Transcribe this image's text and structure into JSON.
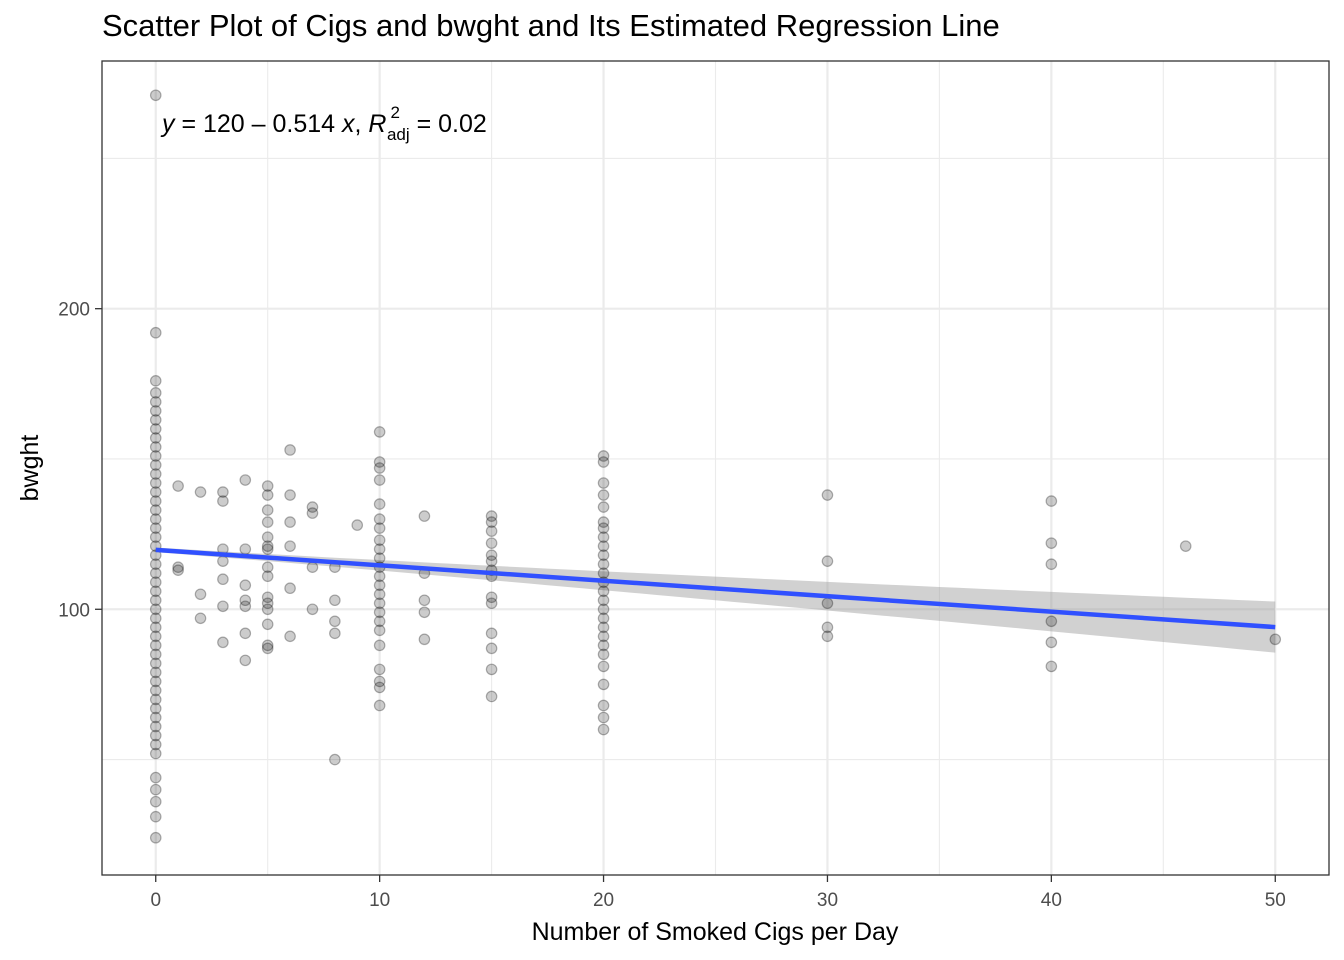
{
  "chart_data": {
    "type": "scatter",
    "title": "Scatter Plot of Cigs and bwght and Its Estimated Regression Line",
    "xlabel": "Number of Smoked Cigs per Day",
    "ylabel": "bwght",
    "xlim": [
      -2.4,
      52.4
    ],
    "ylim": [
      11.6,
      282.4
    ],
    "x_ticks": [
      0,
      10,
      20,
      30,
      40,
      50
    ],
    "y_ticks": [
      100,
      200
    ],
    "grid": true,
    "legend": "none",
    "annotation": {
      "y_var": "y",
      "equals": " = ",
      "formula": "120 – 0.514 ",
      "x_var": "x",
      "r_symbol": "R",
      "r_sup": "2",
      "r_sub": "adj",
      "r_value": " = 0.02"
    },
    "regression": {
      "intercept": 119.77,
      "slope": -0.514,
      "x_range": [
        0,
        50
      ],
      "ci_halfwidth_start": 0.8,
      "ci_halfwidth_end": 8.5
    },
    "colors": {
      "points": "#000000",
      "regression_line": "#3050ff",
      "confidence_band": "#999999",
      "grid": "#ebebeb",
      "panel_border": "#333333"
    },
    "points": [
      {
        "x": 0,
        "y": 271
      },
      {
        "x": 0,
        "y": 192
      },
      {
        "x": 0,
        "y": 176
      },
      {
        "x": 0,
        "y": 172
      },
      {
        "x": 0,
        "y": 169
      },
      {
        "x": 0,
        "y": 166
      },
      {
        "x": 0,
        "y": 163
      },
      {
        "x": 0,
        "y": 160
      },
      {
        "x": 0,
        "y": 157
      },
      {
        "x": 0,
        "y": 154
      },
      {
        "x": 0,
        "y": 151
      },
      {
        "x": 0,
        "y": 148
      },
      {
        "x": 0,
        "y": 145
      },
      {
        "x": 0,
        "y": 142
      },
      {
        "x": 0,
        "y": 139
      },
      {
        "x": 0,
        "y": 136
      },
      {
        "x": 0,
        "y": 133
      },
      {
        "x": 0,
        "y": 130
      },
      {
        "x": 0,
        "y": 127
      },
      {
        "x": 0,
        "y": 124
      },
      {
        "x": 0,
        "y": 121
      },
      {
        "x": 0,
        "y": 118
      },
      {
        "x": 0,
        "y": 115
      },
      {
        "x": 0,
        "y": 112
      },
      {
        "x": 0,
        "y": 109
      },
      {
        "x": 0,
        "y": 106
      },
      {
        "x": 0,
        "y": 103
      },
      {
        "x": 0,
        "y": 100
      },
      {
        "x": 0,
        "y": 97
      },
      {
        "x": 0,
        "y": 94
      },
      {
        "x": 0,
        "y": 91
      },
      {
        "x": 0,
        "y": 88
      },
      {
        "x": 0,
        "y": 85
      },
      {
        "x": 0,
        "y": 82
      },
      {
        "x": 0,
        "y": 79
      },
      {
        "x": 0,
        "y": 76
      },
      {
        "x": 0,
        "y": 73
      },
      {
        "x": 0,
        "y": 70
      },
      {
        "x": 0,
        "y": 67
      },
      {
        "x": 0,
        "y": 64
      },
      {
        "x": 0,
        "y": 61
      },
      {
        "x": 0,
        "y": 58
      },
      {
        "x": 0,
        "y": 55
      },
      {
        "x": 0,
        "y": 52
      },
      {
        "x": 0,
        "y": 44
      },
      {
        "x": 0,
        "y": 40
      },
      {
        "x": 0,
        "y": 36
      },
      {
        "x": 0,
        "y": 31
      },
      {
        "x": 0,
        "y": 24
      },
      {
        "x": 1,
        "y": 141
      },
      {
        "x": 1,
        "y": 114
      },
      {
        "x": 1,
        "y": 113
      },
      {
        "x": 2,
        "y": 139
      },
      {
        "x": 2,
        "y": 105
      },
      {
        "x": 2,
        "y": 97
      },
      {
        "x": 3,
        "y": 139
      },
      {
        "x": 3,
        "y": 136
      },
      {
        "x": 3,
        "y": 120
      },
      {
        "x": 3,
        "y": 116
      },
      {
        "x": 3,
        "y": 110
      },
      {
        "x": 3,
        "y": 101
      },
      {
        "x": 3,
        "y": 89
      },
      {
        "x": 4,
        "y": 143
      },
      {
        "x": 4,
        "y": 120
      },
      {
        "x": 4,
        "y": 108
      },
      {
        "x": 4,
        "y": 103
      },
      {
        "x": 4,
        "y": 101
      },
      {
        "x": 4,
        "y": 92
      },
      {
        "x": 4,
        "y": 83
      },
      {
        "x": 5,
        "y": 141
      },
      {
        "x": 5,
        "y": 138
      },
      {
        "x": 5,
        "y": 133
      },
      {
        "x": 5,
        "y": 129
      },
      {
        "x": 5,
        "y": 124
      },
      {
        "x": 5,
        "y": 121
      },
      {
        "x": 5,
        "y": 120
      },
      {
        "x": 5,
        "y": 114
      },
      {
        "x": 5,
        "y": 111
      },
      {
        "x": 5,
        "y": 104
      },
      {
        "x": 5,
        "y": 102
      },
      {
        "x": 5,
        "y": 100
      },
      {
        "x": 5,
        "y": 95
      },
      {
        "x": 5,
        "y": 88
      },
      {
        "x": 5,
        "y": 87
      },
      {
        "x": 6,
        "y": 153
      },
      {
        "x": 6,
        "y": 138
      },
      {
        "x": 6,
        "y": 129
      },
      {
        "x": 6,
        "y": 121
      },
      {
        "x": 6,
        "y": 107
      },
      {
        "x": 6,
        "y": 91
      },
      {
        "x": 7,
        "y": 134
      },
      {
        "x": 7,
        "y": 132
      },
      {
        "x": 7,
        "y": 114
      },
      {
        "x": 7,
        "y": 100
      },
      {
        "x": 8,
        "y": 114
      },
      {
        "x": 8,
        "y": 103
      },
      {
        "x": 8,
        "y": 96
      },
      {
        "x": 8,
        "y": 92
      },
      {
        "x": 8,
        "y": 50
      },
      {
        "x": 9,
        "y": 128
      },
      {
        "x": 10,
        "y": 159
      },
      {
        "x": 10,
        "y": 149
      },
      {
        "x": 10,
        "y": 147
      },
      {
        "x": 10,
        "y": 143
      },
      {
        "x": 10,
        "y": 135
      },
      {
        "x": 10,
        "y": 130
      },
      {
        "x": 10,
        "y": 127
      },
      {
        "x": 10,
        "y": 123
      },
      {
        "x": 10,
        "y": 120
      },
      {
        "x": 10,
        "y": 117
      },
      {
        "x": 10,
        "y": 114
      },
      {
        "x": 10,
        "y": 111
      },
      {
        "x": 10,
        "y": 108
      },
      {
        "x": 10,
        "y": 105
      },
      {
        "x": 10,
        "y": 102
      },
      {
        "x": 10,
        "y": 99
      },
      {
        "x": 10,
        "y": 96
      },
      {
        "x": 10,
        "y": 93
      },
      {
        "x": 10,
        "y": 88
      },
      {
        "x": 10,
        "y": 80
      },
      {
        "x": 10,
        "y": 76
      },
      {
        "x": 10,
        "y": 74
      },
      {
        "x": 10,
        "y": 68
      },
      {
        "x": 12,
        "y": 131
      },
      {
        "x": 12,
        "y": 112
      },
      {
        "x": 12,
        "y": 103
      },
      {
        "x": 12,
        "y": 99
      },
      {
        "x": 12,
        "y": 90
      },
      {
        "x": 15,
        "y": 131
      },
      {
        "x": 15,
        "y": 129
      },
      {
        "x": 15,
        "y": 126
      },
      {
        "x": 15,
        "y": 122
      },
      {
        "x": 15,
        "y": 118
      },
      {
        "x": 15,
        "y": 116
      },
      {
        "x": 15,
        "y": 113
      },
      {
        "x": 15,
        "y": 111
      },
      {
        "x": 15,
        "y": 104
      },
      {
        "x": 15,
        "y": 102
      },
      {
        "x": 15,
        "y": 92
      },
      {
        "x": 15,
        "y": 87
      },
      {
        "x": 15,
        "y": 80
      },
      {
        "x": 15,
        "y": 71
      },
      {
        "x": 20,
        "y": 151
      },
      {
        "x": 20,
        "y": 149
      },
      {
        "x": 20,
        "y": 142
      },
      {
        "x": 20,
        "y": 138
      },
      {
        "x": 20,
        "y": 134
      },
      {
        "x": 20,
        "y": 129
      },
      {
        "x": 20,
        "y": 127
      },
      {
        "x": 20,
        "y": 124
      },
      {
        "x": 20,
        "y": 121
      },
      {
        "x": 20,
        "y": 118
      },
      {
        "x": 20,
        "y": 115
      },
      {
        "x": 20,
        "y": 112
      },
      {
        "x": 20,
        "y": 109
      },
      {
        "x": 20,
        "y": 106
      },
      {
        "x": 20,
        "y": 103
      },
      {
        "x": 20,
        "y": 100
      },
      {
        "x": 20,
        "y": 97
      },
      {
        "x": 20,
        "y": 94
      },
      {
        "x": 20,
        "y": 91
      },
      {
        "x": 20,
        "y": 88
      },
      {
        "x": 20,
        "y": 85
      },
      {
        "x": 20,
        "y": 81
      },
      {
        "x": 20,
        "y": 75
      },
      {
        "x": 20,
        "y": 68
      },
      {
        "x": 20,
        "y": 64
      },
      {
        "x": 20,
        "y": 60
      },
      {
        "x": 30,
        "y": 138
      },
      {
        "x": 30,
        "y": 116
      },
      {
        "x": 30,
        "y": 102
      },
      {
        "x": 30,
        "y": 94
      },
      {
        "x": 30,
        "y": 91
      },
      {
        "x": 40,
        "y": 136
      },
      {
        "x": 40,
        "y": 122
      },
      {
        "x": 40,
        "y": 115
      },
      {
        "x": 40,
        "y": 96
      },
      {
        "x": 40,
        "y": 89
      },
      {
        "x": 40,
        "y": 81
      },
      {
        "x": 46,
        "y": 121
      },
      {
        "x": 50,
        "y": 90
      }
    ]
  }
}
